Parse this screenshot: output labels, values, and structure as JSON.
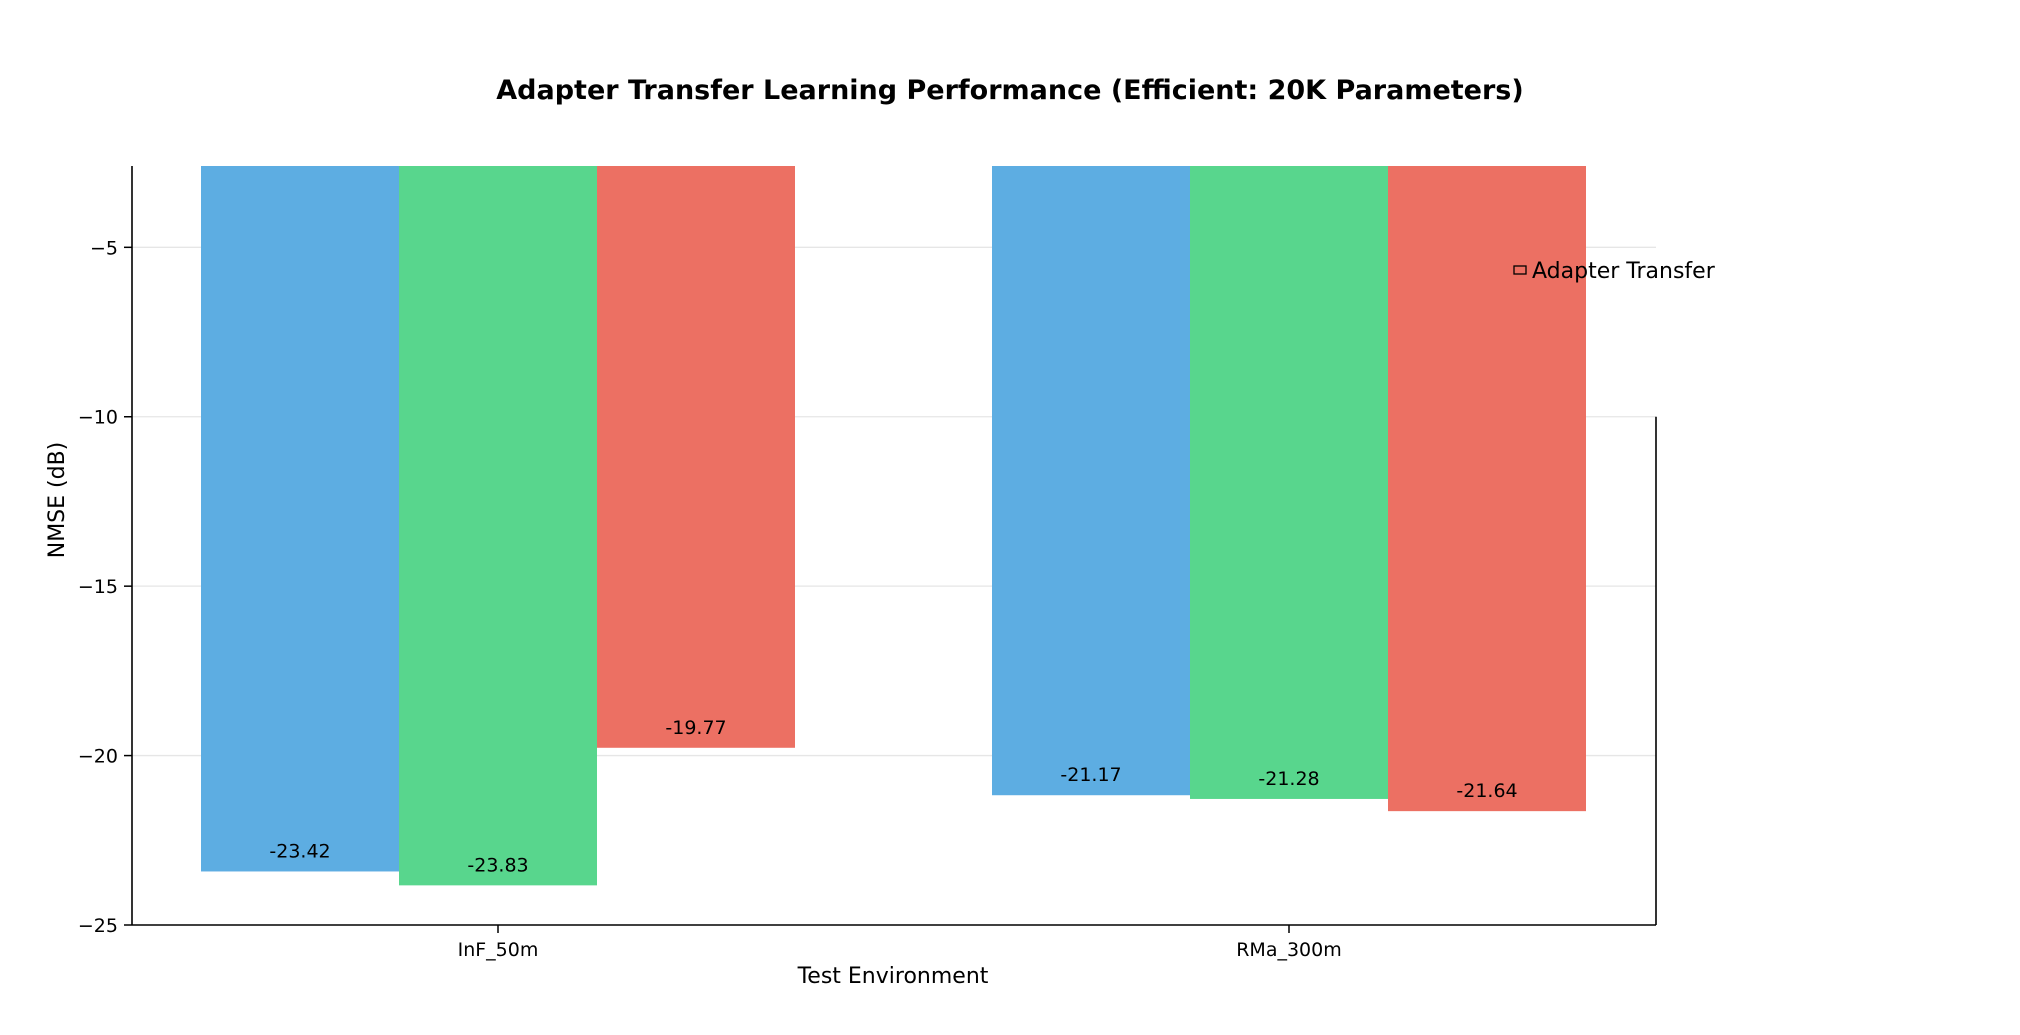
{
  "chart_data": {
    "type": "bar",
    "title": "Adapter Transfer Learning Performance (Efficient: 20K Parameters)",
    "xlabel": "Test Environment",
    "ylabel": "NMSE (dB)",
    "categories": [
      "InF_50m",
      "RMa_300m"
    ],
    "series": [
      {
        "values": [
          -23.42,
          -21.17
        ],
        "value_labels": [
          "-23.42",
          "-21.17"
        ],
        "color": "#5dade2"
      },
      {
        "values": [
          -23.83,
          -21.28
        ],
        "value_labels": [
          "-23.83",
          "-21.28"
        ],
        "color": "#58d68d"
      },
      {
        "name": "Adapter Transfer",
        "values": [
          -19.77,
          -21.64
        ],
        "value_labels": [
          "-19.77",
          "-21.64"
        ],
        "color": "#ec7063"
      }
    ],
    "ylim": [
      -25,
      -2.6
    ],
    "yticks": [
      -5,
      -10,
      -15,
      -20,
      -25
    ],
    "ytick_labels": [
      "−5",
      "−10",
      "−15",
      "−20",
      "−25"
    ],
    "grid": "y",
    "legend": {
      "placement": "upper-right",
      "entries": [
        {
          "label": "Adapter Transfer",
          "color": "#ec7063"
        }
      ]
    }
  }
}
